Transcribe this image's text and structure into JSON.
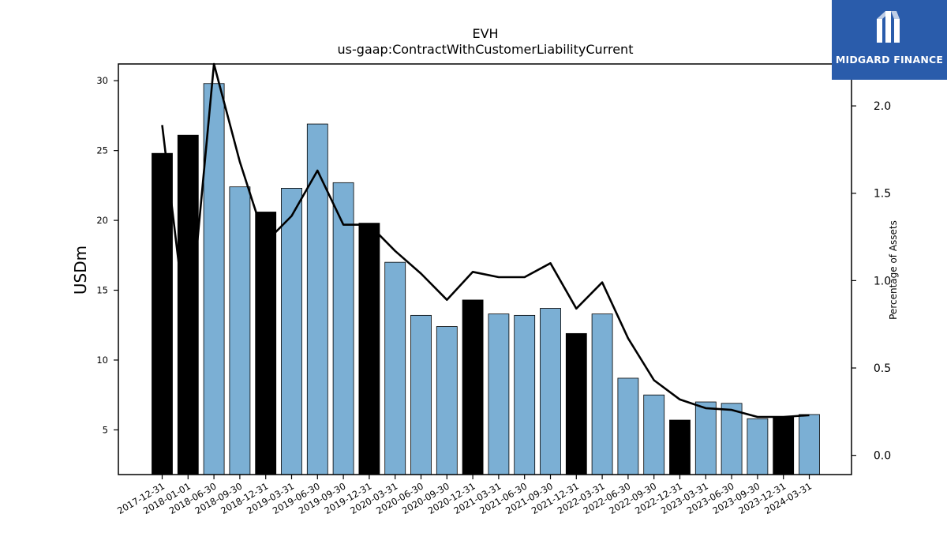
{
  "chart_data": {
    "type": "bar",
    "title": "EVH",
    "subtitle": "us-gaap:ContractWithCustomerLiabilityCurrent",
    "ylabel": "USDm",
    "y2label": "Percentage of Assets",
    "categories": [
      "2017-12-31",
      "2018-01-01",
      "2018-06-30",
      "2018-09-30",
      "2018-12-31",
      "2019-03-31",
      "2019-06-30",
      "2019-09-30",
      "2019-12-31",
      "2020-03-31",
      "2020-06-30",
      "2020-09-30",
      "2020-12-31",
      "2021-03-31",
      "2021-06-30",
      "2021-09-30",
      "2021-12-31",
      "2022-03-31",
      "2022-06-30",
      "2022-09-30",
      "2022-12-31",
      "2023-03-31",
      "2023-06-30",
      "2023-09-30",
      "2023-12-31",
      "2024-03-31"
    ],
    "series": [
      {
        "type": "bar",
        "values": [
          24.8,
          26.1,
          29.8,
          22.4,
          20.6,
          22.3,
          26.9,
          22.7,
          19.8,
          17.0,
          13.2,
          12.4,
          14.3,
          13.3,
          13.2,
          13.7,
          11.9,
          13.3,
          8.7,
          7.5,
          5.7,
          7.0,
          6.9,
          5.8,
          5.9,
          6.1
        ],
        "highlighted": [
          true,
          true,
          false,
          false,
          true,
          false,
          false,
          false,
          true,
          false,
          false,
          false,
          true,
          false,
          false,
          false,
          true,
          false,
          false,
          false,
          true,
          false,
          false,
          false,
          true,
          false
        ]
      },
      {
        "type": "line",
        "axis": "right",
        "values": [
          1.89,
          0.65,
          2.24,
          1.68,
          1.22,
          1.37,
          1.63,
          1.32,
          1.32,
          1.17,
          1.04,
          0.89,
          1.05,
          1.02,
          1.02,
          1.1,
          0.84,
          0.99,
          0.67,
          0.43,
          0.32,
          0.27,
          0.26,
          0.22,
          0.22,
          0.23
        ]
      }
    ],
    "ylim": [
      1.8,
      31.2
    ],
    "y2lim": [
      -0.11,
      2.24
    ],
    "yticks": [
      5,
      10,
      15,
      20,
      25,
      30
    ],
    "y2ticks": [
      0.0,
      0.5,
      1.0,
      1.5,
      2.0
    ],
    "y2tick_labels": [
      "0.0",
      "0.5",
      "1.0",
      "1.5",
      "2.0"
    ],
    "colors": {
      "bar": "#7bafd4",
      "bar_highlight": "#000000",
      "line": "#000000"
    },
    "grid": false
  },
  "logo": {
    "text": "MIDGARD FINANCE",
    "bg": "#2a5cab"
  }
}
